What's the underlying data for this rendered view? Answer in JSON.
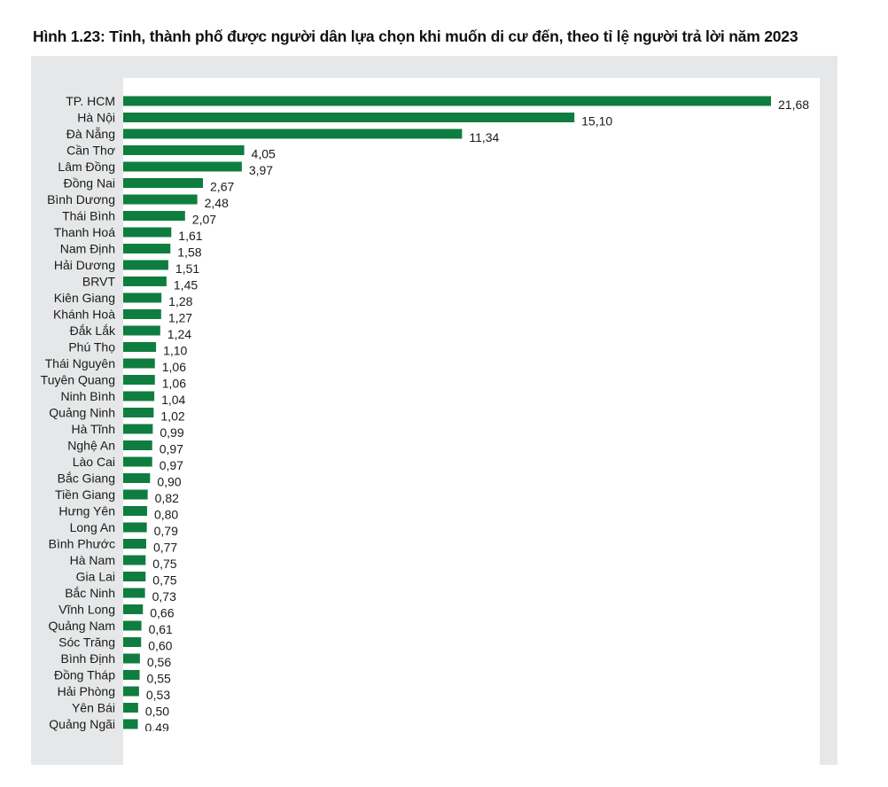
{
  "chart_data": {
    "type": "bar",
    "orientation": "horizontal",
    "title": "Hình 1.23: Tỉnh, thành phố được người dân lựa chọn khi muốn di cư đến, theo tỉ lệ người trả lời năm 2023",
    "categories": [
      "TP. HCM",
      "Hà Nội",
      "Đà Nẵng",
      "Cần Thơ",
      "Lâm Đồng",
      "Đồng Nai",
      "Bình Dương",
      "Thái Bình",
      "Thanh Hoá",
      "Nam Định",
      "Hải Dương",
      "BRVT",
      "Kiên Giang",
      "Khánh Hoà",
      "Đắk Lắk",
      "Phú Thọ",
      "Thái Nguyên",
      "Tuyên Quang",
      "Ninh Bình",
      "Quảng Ninh",
      "Hà Tĩnh",
      "Nghệ An",
      "Lào Cai",
      "Bắc Giang",
      "Tiền Giang",
      "Hưng Yên",
      "Long An",
      "Bình Phước",
      "Hà Nam",
      "Gia Lai",
      "Bắc Ninh",
      "Vĩnh Long",
      "Quảng Nam",
      "Sóc Trăng",
      "Bình Định",
      "Đồng Tháp",
      "Hải Phòng",
      "Yên Bái",
      "Quảng Ngãi"
    ],
    "values": [
      21.68,
      15.1,
      11.34,
      4.05,
      3.97,
      2.67,
      2.48,
      2.07,
      1.61,
      1.58,
      1.51,
      1.45,
      1.28,
      1.27,
      1.24,
      1.1,
      1.06,
      1.06,
      1.04,
      1.02,
      0.99,
      0.97,
      0.97,
      0.9,
      0.82,
      0.8,
      0.79,
      0.77,
      0.75,
      0.75,
      0.73,
      0.66,
      0.61,
      0.6,
      0.56,
      0.55,
      0.53,
      0.5,
      0.49
    ],
    "value_labels": [
      "21,68",
      "15,10",
      "11,34",
      "4,05",
      "3,97",
      "2,67",
      "2,48",
      "2,07",
      "1,61",
      "1,58",
      "1,51",
      "1,45",
      "1,28",
      "1,27",
      "1,24",
      "1,10",
      "1,06",
      "1,06",
      "1,04",
      "1,02",
      "0,99",
      "0,97",
      "0,97",
      "0,90",
      "0,82",
      "0,80",
      "0,79",
      "0,77",
      "0,75",
      "0,75",
      "0,73",
      "0,66",
      "0,61",
      "0,60",
      "0,56",
      "0,55",
      "0,53",
      "0,50",
      "0,49"
    ],
    "xlabel": "",
    "ylabel": "",
    "grid": false,
    "bar_color": "#0f7d40",
    "frame_color": "#e6e7e8"
  }
}
